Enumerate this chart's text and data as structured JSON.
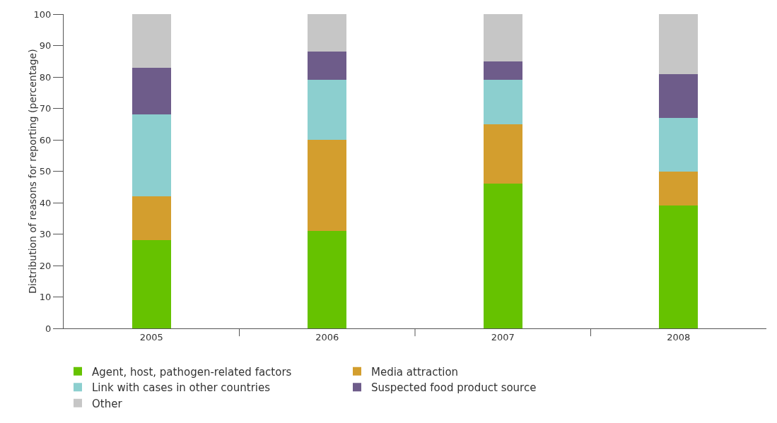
{
  "chart_data": {
    "type": "bar",
    "stacked": true,
    "ylabel": "Distribution of reasons for reporting (percentage)",
    "categories": [
      "2005",
      "2006",
      "2007",
      "2008"
    ],
    "series": [
      {
        "name": "Agent, host, pathogen-related factors",
        "color": "#66c200",
        "values": [
          28,
          31,
          46,
          39
        ]
      },
      {
        "name": "Media attraction",
        "color": "#d39e2e",
        "values": [
          14,
          29,
          19,
          11
        ]
      },
      {
        "name": "Link with cases in other countries",
        "color": "#8ccfcf",
        "values": [
          26,
          19,
          14,
          17
        ]
      },
      {
        "name": "Suspected food product source",
        "color": "#6e5c8a",
        "values": [
          15,
          9,
          6,
          14
        ]
      },
      {
        "name": "Other",
        "color": "#c6c6c6",
        "values": [
          17,
          12,
          15,
          19
        ]
      }
    ],
    "ylim": [
      0,
      100
    ],
    "yticks": [
      0,
      10,
      20,
      30,
      40,
      50,
      60,
      70,
      80,
      90,
      100
    ],
    "grid": false,
    "legend": "bottom"
  }
}
